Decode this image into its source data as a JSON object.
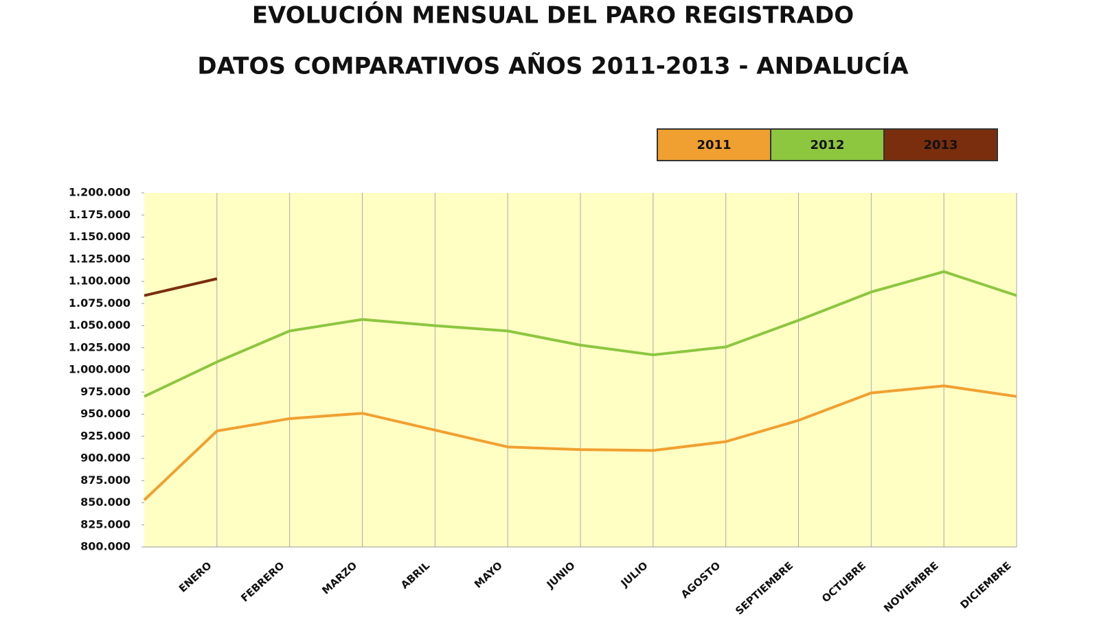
{
  "chart_data": {
    "type": "line",
    "title": "EVOLUCIÓN MENSUAL DEL PARO REGISTRADO",
    "subtitle": "DATOS COMPARATIVOS AÑOS 2011-2013 - ANDALUCÍA",
    "categories": [
      null,
      "ENERO",
      "FEBRERO",
      "MARZO",
      "ABRIL",
      "MAYO",
      "JUNIO",
      "JULIO",
      "AGOSTO",
      "SEPTIEMBRE",
      "OCTUBRE",
      "NOVIEMBRE",
      "DICIEMBRE"
    ],
    "series": [
      {
        "name": "2011",
        "color": "#f0a030",
        "values": [
          853000,
          931000,
          945000,
          951000,
          932000,
          913000,
          910000,
          909000,
          919000,
          943000,
          974000,
          982000,
          970000
        ]
      },
      {
        "name": "2012",
        "color": "#8dc63f",
        "values": [
          970000,
          1009000,
          1044000,
          1057000,
          1050000,
          1044000,
          1028000,
          1017000,
          1026000,
          1056000,
          1088000,
          1111000,
          1084000
        ]
      },
      {
        "name": "2013",
        "color": "#7a2e0e",
        "values": [
          1084000,
          1103000,
          null,
          null,
          null,
          null,
          null,
          null,
          null,
          null,
          null,
          null,
          null
        ]
      }
    ],
    "ylim": [
      800000,
      1200000
    ],
    "yticks": [
      {
        "value": 800000,
        "label": "800.000"
      },
      {
        "value": 825000,
        "label": "825.000"
      },
      {
        "value": 850000,
        "label": "850.000"
      },
      {
        "value": 875000,
        "label": "875.000"
      },
      {
        "value": 900000,
        "label": "900.000"
      },
      {
        "value": 925000,
        "label": "925.000"
      },
      {
        "value": 950000,
        "label": "950.000"
      },
      {
        "value": 975000,
        "label": "975.000"
      },
      {
        "value": 1000000,
        "label": "1.000.000"
      },
      {
        "value": 1025000,
        "label": "1.025.000"
      },
      {
        "value": 1050000,
        "label": "1.050.000"
      },
      {
        "value": 1075000,
        "label": "1.075.000"
      },
      {
        "value": 1100000,
        "label": "1.100.000"
      },
      {
        "value": 1125000,
        "label": "1.125.000"
      },
      {
        "value": 1150000,
        "label": "1.150.000"
      },
      {
        "value": 1175000,
        "label": "1.175.000"
      },
      {
        "value": 1200000,
        "label": "1.200.000"
      }
    ],
    "grid": true,
    "legend": "top-right"
  }
}
